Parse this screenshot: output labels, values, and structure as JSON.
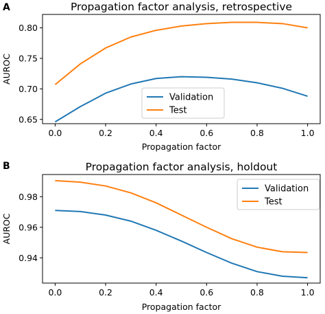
{
  "chart_data": [
    {
      "type": "line",
      "panel": "A",
      "title": "Propagation factor analysis, retrospective",
      "xlabel": "Propagation factor",
      "ylabel": "AUROC",
      "x": [
        0.0,
        0.1,
        0.2,
        0.3,
        0.4,
        0.5,
        0.6,
        0.7,
        0.8,
        0.9,
        1.0
      ],
      "xlim": [
        -0.05,
        1.05
      ],
      "ylim": [
        0.643,
        0.822
      ],
      "xticks": [
        0.0,
        0.2,
        0.4,
        0.6,
        0.8,
        1.0
      ],
      "xtick_labels": [
        "0.0",
        "0.2",
        "0.4",
        "0.6",
        "0.8",
        "1.0"
      ],
      "yticks": [
        0.65,
        0.7,
        0.75,
        0.8
      ],
      "ytick_labels": [
        "0.65",
        "0.70",
        "0.75",
        "0.80"
      ],
      "grid": false,
      "legend_position": "lower center",
      "series": [
        {
          "name": "Validation",
          "color": "#1f77b4",
          "values": [
            0.646,
            0.671,
            0.693,
            0.708,
            0.717,
            0.72,
            0.719,
            0.716,
            0.71,
            0.701,
            0.688
          ]
        },
        {
          "name": "Test",
          "color": "#ff7f0e",
          "values": [
            0.707,
            0.741,
            0.767,
            0.785,
            0.796,
            0.803,
            0.807,
            0.809,
            0.809,
            0.807,
            0.8
          ]
        }
      ]
    },
    {
      "type": "line",
      "panel": "B",
      "title": "Propagation factor analysis, holdout",
      "xlabel": "Propagation factor",
      "ylabel": "AUROC",
      "x": [
        0.0,
        0.1,
        0.2,
        0.3,
        0.4,
        0.5,
        0.6,
        0.7,
        0.8,
        0.9,
        1.0
      ],
      "xlim": [
        -0.05,
        1.05
      ],
      "ylim": [
        0.9235,
        0.9945
      ],
      "xticks": [
        0.0,
        0.2,
        0.4,
        0.6,
        0.8,
        1.0
      ],
      "xtick_labels": [
        "0.0",
        "0.2",
        "0.4",
        "0.6",
        "0.8",
        "1.0"
      ],
      "yticks": [
        0.94,
        0.96,
        0.98
      ],
      "ytick_labels": [
        "0.94",
        "0.96",
        "0.98"
      ],
      "grid": false,
      "legend_position": "upper right",
      "series": [
        {
          "name": "Validation",
          "color": "#1f77b4",
          "values": [
            0.971,
            0.9703,
            0.968,
            0.964,
            0.958,
            0.951,
            0.9435,
            0.9365,
            0.931,
            0.928,
            0.927
          ]
        },
        {
          "name": "Test",
          "color": "#ff7f0e",
          "values": [
            0.9905,
            0.9895,
            0.987,
            0.9825,
            0.976,
            0.968,
            0.96,
            0.9525,
            0.947,
            0.944,
            0.9435
          ]
        }
      ]
    }
  ]
}
